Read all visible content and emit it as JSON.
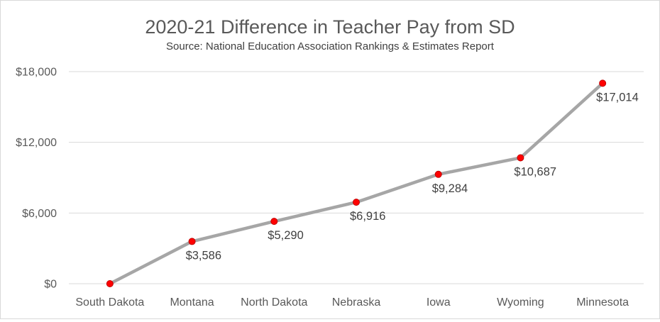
{
  "chart_data": {
    "type": "line",
    "title": "2020-21 Difference in Teacher Pay from SD",
    "subtitle": "Source: National Education Association Rankings & Estimates Report",
    "xlabel": "",
    "ylabel": "",
    "categories": [
      "South Dakota",
      "Montana",
      "North Dakota",
      "Nebraska",
      "Iowa",
      "Wyoming",
      "Minnesota"
    ],
    "values": [
      0,
      3586,
      5290,
      6916,
      9284,
      10687,
      17014
    ],
    "data_labels": [
      "",
      "$3,586",
      "$5,290",
      "$6,916",
      "$9,284",
      "$10,687",
      "$17,014"
    ],
    "y_ticks": [
      0,
      6000,
      12000,
      18000
    ],
    "y_tick_labels": [
      "$0",
      "$6,000",
      "$12,000",
      "$18,000"
    ],
    "ylim": [
      0,
      18000
    ],
    "grid": true,
    "legend": "none",
    "colors": {
      "line": "#a6a6a6",
      "marker_fill": "#ff0000",
      "marker_edge": "#c00000",
      "grid": "#d9d9d9"
    }
  }
}
